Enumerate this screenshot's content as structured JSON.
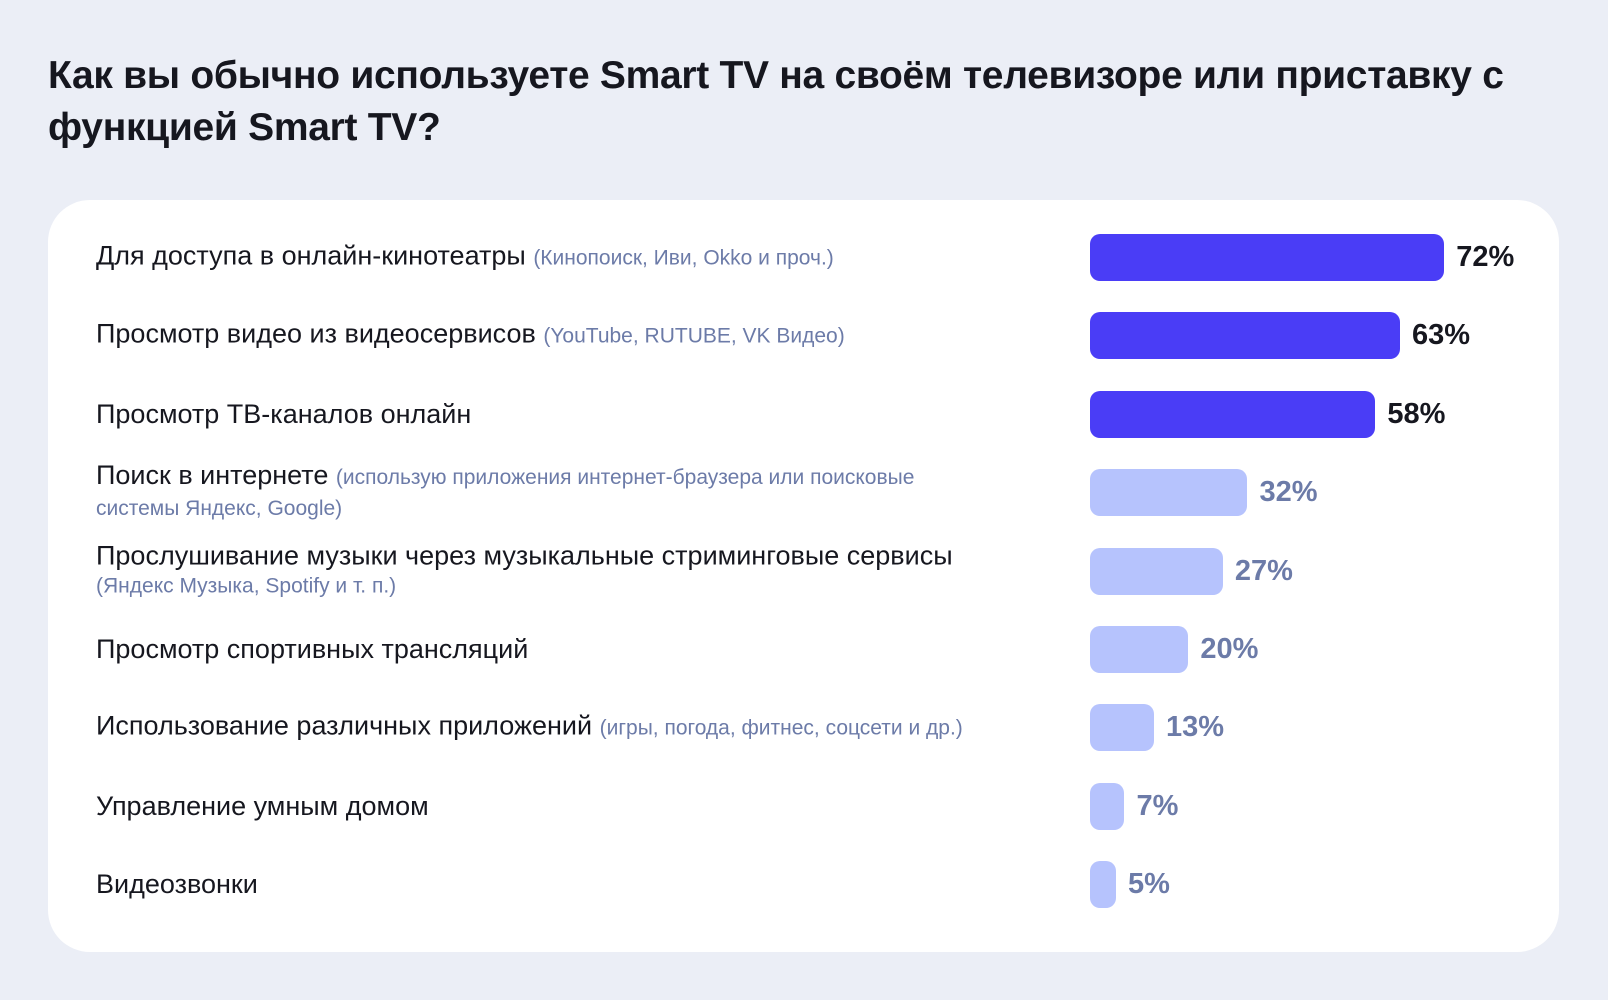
{
  "title": "Как вы обычно используете Smart TV на своём телевизоре или приставку с функцией Smart TV?",
  "chart_data": {
    "type": "bar",
    "orientation": "horizontal",
    "title": "Как вы обычно используете Smart TV на своём телевизоре или приставку с функцией Smart TV?",
    "xlim": [
      0,
      100
    ],
    "unit": "%",
    "colors": {
      "highlight_bar": "#4a3df6",
      "highlight_value": "#16171f",
      "muted_bar": "#b6c3fd",
      "muted_value": "#6c7ba8",
      "note": "#6c7ba8"
    },
    "rows": [
      {
        "category": "Для доступа в онлайн-кинотеатры",
        "note": "(Кинопоиск, Иви, Okko и проч.)",
        "value": 72,
        "label": "72%",
        "highlight": true
      },
      {
        "category": "Просмотр видео из видеосервисов",
        "note": "(YouTube, RUTUBE, VK Видео)",
        "value": 63,
        "label": "63%",
        "highlight": true
      },
      {
        "category": "Просмотр ТВ-каналов онлайн",
        "note": "",
        "value": 58,
        "label": "58%",
        "highlight": true
      },
      {
        "category": "Поиск в интернете",
        "note": "(использую приложения интернет-браузера или поисковые системы Яндекс, Google)",
        "value": 32,
        "label": "32%",
        "highlight": false
      },
      {
        "category": "Прослушивание музыки через музыкальные стриминговые сервисы",
        "note": "(Яндекс Музыка, Spotify и т. п.)",
        "value": 27,
        "label": "27%",
        "highlight": false
      },
      {
        "category": "Просмотр спортивных трансляций",
        "note": "",
        "value": 20,
        "label": "20%",
        "highlight": false
      },
      {
        "category": "Использование различных приложений",
        "note": "(игры, погода, фитнес, соцсети и др.)",
        "value": 13,
        "label": "13%",
        "highlight": false
      },
      {
        "category": "Управление умным домом",
        "note": "",
        "value": 7,
        "label": "7%",
        "highlight": false
      },
      {
        "category": "Видеозвонки",
        "note": "",
        "value": 5,
        "label": "5%",
        "highlight": false
      }
    ]
  }
}
